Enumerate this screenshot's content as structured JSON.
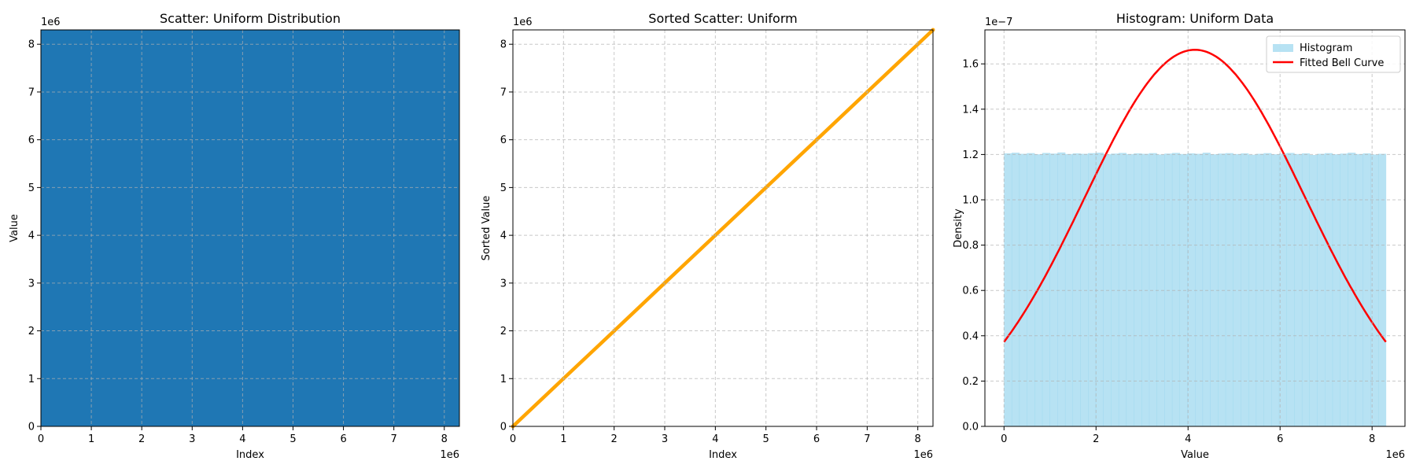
{
  "chart_data": [
    {
      "type": "scatter",
      "title": "Scatter: Uniform Distribution",
      "xlabel": "Index",
      "ylabel": "Value",
      "xlim": [
        0,
        8300000
      ],
      "ylim": [
        0,
        8300000
      ],
      "x_offset_label": "1e6",
      "y_offset_label": "1e6",
      "x_ticks": [
        0,
        1000000,
        2000000,
        3000000,
        4000000,
        5000000,
        6000000,
        7000000,
        8000000
      ],
      "x_tick_labels": [
        "0",
        "1",
        "2",
        "3",
        "4",
        "5",
        "6",
        "7",
        "8"
      ],
      "y_ticks": [
        0,
        1000000,
        2000000,
        3000000,
        4000000,
        5000000,
        6000000,
        7000000,
        8000000
      ],
      "y_tick_labels": [
        "0",
        "1",
        "2",
        "3",
        "4",
        "5",
        "6",
        "7",
        "8"
      ],
      "grid": true,
      "color": "#1f77b4",
      "fill": "dense uniform points covering the full axes area"
    },
    {
      "type": "scatter",
      "title": "Sorted Scatter: Uniform",
      "xlabel": "Index",
      "ylabel": "Sorted Value",
      "xlim": [
        0,
        8300000
      ],
      "ylim": [
        0,
        8300000
      ],
      "x_offset_label": "1e6",
      "y_offset_label": "1e6",
      "x_ticks": [
        0,
        1000000,
        2000000,
        3000000,
        4000000,
        5000000,
        6000000,
        7000000,
        8000000
      ],
      "x_tick_labels": [
        "0",
        "1",
        "2",
        "3",
        "4",
        "5",
        "6",
        "7",
        "8"
      ],
      "y_ticks": [
        0,
        1000000,
        2000000,
        3000000,
        4000000,
        5000000,
        6000000,
        7000000,
        8000000
      ],
      "y_tick_labels": [
        "0",
        "1",
        "2",
        "3",
        "4",
        "5",
        "6",
        "7",
        "8"
      ],
      "grid": true,
      "color": "#ffa500",
      "series": [
        {
          "x": [
            0,
            1000000,
            2000000,
            3000000,
            4000000,
            5000000,
            6000000,
            7000000,
            8000000,
            8300000
          ],
          "y": [
            0,
            1000000,
            2000000,
            3000000,
            4000000,
            5000000,
            6000000,
            7000000,
            8000000,
            8300000
          ]
        }
      ]
    },
    {
      "type": "bar",
      "title": "Histogram: Uniform Data",
      "xlabel": "Value",
      "ylabel": "Density",
      "xlim": [
        -415000,
        8715000
      ],
      "ylim": [
        0,
        1.75e-07
      ],
      "x_offset_label": "1e6",
      "y_offset_label": "1e−7",
      "x_ticks": [
        0,
        2000000,
        4000000,
        6000000,
        8000000
      ],
      "x_tick_labels": [
        "0",
        "2",
        "4",
        "6",
        "8"
      ],
      "y_ticks": [
        0,
        2e-08,
        4e-08,
        6e-08,
        8e-08,
        1e-07,
        1.2e-07,
        1.4e-07,
        1.6e-07
      ],
      "y_tick_labels": [
        "0.0",
        "0.2",
        "0.4",
        "0.6",
        "0.8",
        "1.0",
        "1.2",
        "1.4",
        "1.6"
      ],
      "grid": true,
      "legend_position": "top-right",
      "histogram": {
        "name": "Histogram",
        "color": "#87ceeb",
        "bin_range": [
          0,
          8300000
        ],
        "density": [
          1.205e-07,
          1.208e-07,
          1.203e-07,
          1.206e-07,
          1.201e-07,
          1.207e-07,
          1.204e-07,
          1.209e-07,
          1.202e-07,
          1.205e-07,
          1.203e-07,
          1.206e-07,
          1.208e-07,
          1.201e-07,
          1.204e-07,
          1.207e-07,
          1.202e-07,
          1.205e-07,
          1.203e-07,
          1.206e-07,
          1.2e-07,
          1.204e-07,
          1.207e-07,
          1.202e-07,
          1.205e-07,
          1.203e-07,
          1.208e-07,
          1.201e-07,
          1.204e-07,
          1.206e-07,
          1.202e-07,
          1.205e-07,
          1.199e-07,
          1.203e-07,
          1.206e-07,
          1.201e-07,
          1.204e-07,
          1.207e-07,
          1.202e-07,
          1.205e-07,
          1.198e-07,
          1.203e-07,
          1.206e-07,
          1.201e-07,
          1.204e-07,
          1.208e-07,
          1.202e-07,
          1.205e-07,
          1.2e-07,
          1.203e-07
        ]
      },
      "curve": {
        "name": "Fitted Bell Curve",
        "color": "#ff0000",
        "mean": 4150000,
        "std": 2400000,
        "x_range": [
          0,
          8300000
        ]
      }
    }
  ]
}
